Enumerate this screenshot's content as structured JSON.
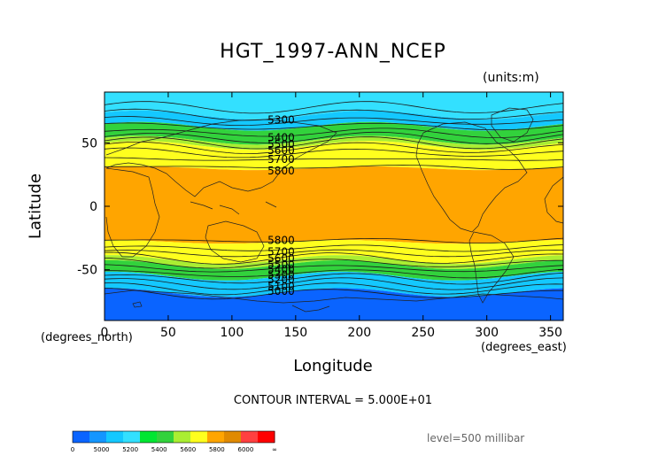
{
  "chart_data": {
    "type": "heatmap",
    "title": "HGT_1997-ANN_NCEP",
    "units": "(units:m)",
    "xlabel": "Longitude",
    "ylabel": "Latitude",
    "x_unit": "(degrees_north)",
    "x_unit_east": "(degrees_east)",
    "xlim": [
      0,
      360
    ],
    "ylim": [
      -90,
      90
    ],
    "x_ticks": [
      0,
      50,
      100,
      150,
      200,
      250,
      300,
      350
    ],
    "y_ticks": [
      50,
      0,
      -50
    ],
    "contour_interval_text": "CONTOUR INTERVAL = 5.000E+01",
    "level_text": "level=500 millibar",
    "bands": [
      {
        "lat_top": 90,
        "lat_bot": 72,
        "color": "#33e0ff"
      },
      {
        "lat_top": 72,
        "lat_bot": 63,
        "color": "#14c8ff"
      },
      {
        "lat_top": 63,
        "lat_bot": 52,
        "color": "#32d23c"
      },
      {
        "lat_top": 52,
        "lat_bot": 48,
        "color": "#aaee32"
      },
      {
        "lat_top": 48,
        "lat_bot": 30,
        "color": "#ffff1e"
      },
      {
        "lat_top": 30,
        "lat_bot": -28,
        "color": "#ffa500"
      },
      {
        "lat_top": -28,
        "lat_bot": -42,
        "color": "#ffff1e"
      },
      {
        "lat_top": -42,
        "lat_bot": -46,
        "color": "#aaee32"
      },
      {
        "lat_top": -46,
        "lat_bot": -55,
        "color": "#32d23c"
      },
      {
        "lat_top": -55,
        "lat_bot": -68,
        "color": "#14c8ff"
      },
      {
        "lat_top": -68,
        "lat_bot": -90,
        "color": "#0a64ff"
      }
    ],
    "contour_labels": [
      {
        "text": "5300",
        "lon": 128,
        "lat": 68
      },
      {
        "text": "5400",
        "lon": 128,
        "lat": 54
      },
      {
        "text": "5500",
        "lon": 128,
        "lat": 49
      },
      {
        "text": "5600",
        "lon": 128,
        "lat": 44
      },
      {
        "text": "5700",
        "lon": 128,
        "lat": 37
      },
      {
        "text": "5800",
        "lon": 128,
        "lat": 28
      },
      {
        "text": "5800",
        "lon": 128,
        "lat": -27
      },
      {
        "text": "5700",
        "lon": 128,
        "lat": -36
      },
      {
        "text": "5600",
        "lon": 128,
        "lat": -41
      },
      {
        "text": "5500",
        "lon": 128,
        "lat": -46
      },
      {
        "text": "5400",
        "lon": 128,
        "lat": -50
      },
      {
        "text": "5300",
        "lon": 128,
        "lat": -54
      },
      {
        "text": "5200",
        "lon": 128,
        "lat": -58
      },
      {
        "text": "5100",
        "lon": 128,
        "lat": -63
      },
      {
        "text": "5000",
        "lon": 128,
        "lat": -67
      }
    ],
    "colorbar": {
      "colors": [
        "#0a64ff",
        "#1496ff",
        "#14c8ff",
        "#33e0ff",
        "#00e632",
        "#32d23c",
        "#aaee32",
        "#ffff1e",
        "#ffa500",
        "#e08a00",
        "#ff4040",
        "#ff0000"
      ],
      "labels": [
        "0",
        "5000",
        "5200",
        "5400",
        "5600",
        "5800",
        "6000",
        "∞"
      ]
    }
  }
}
